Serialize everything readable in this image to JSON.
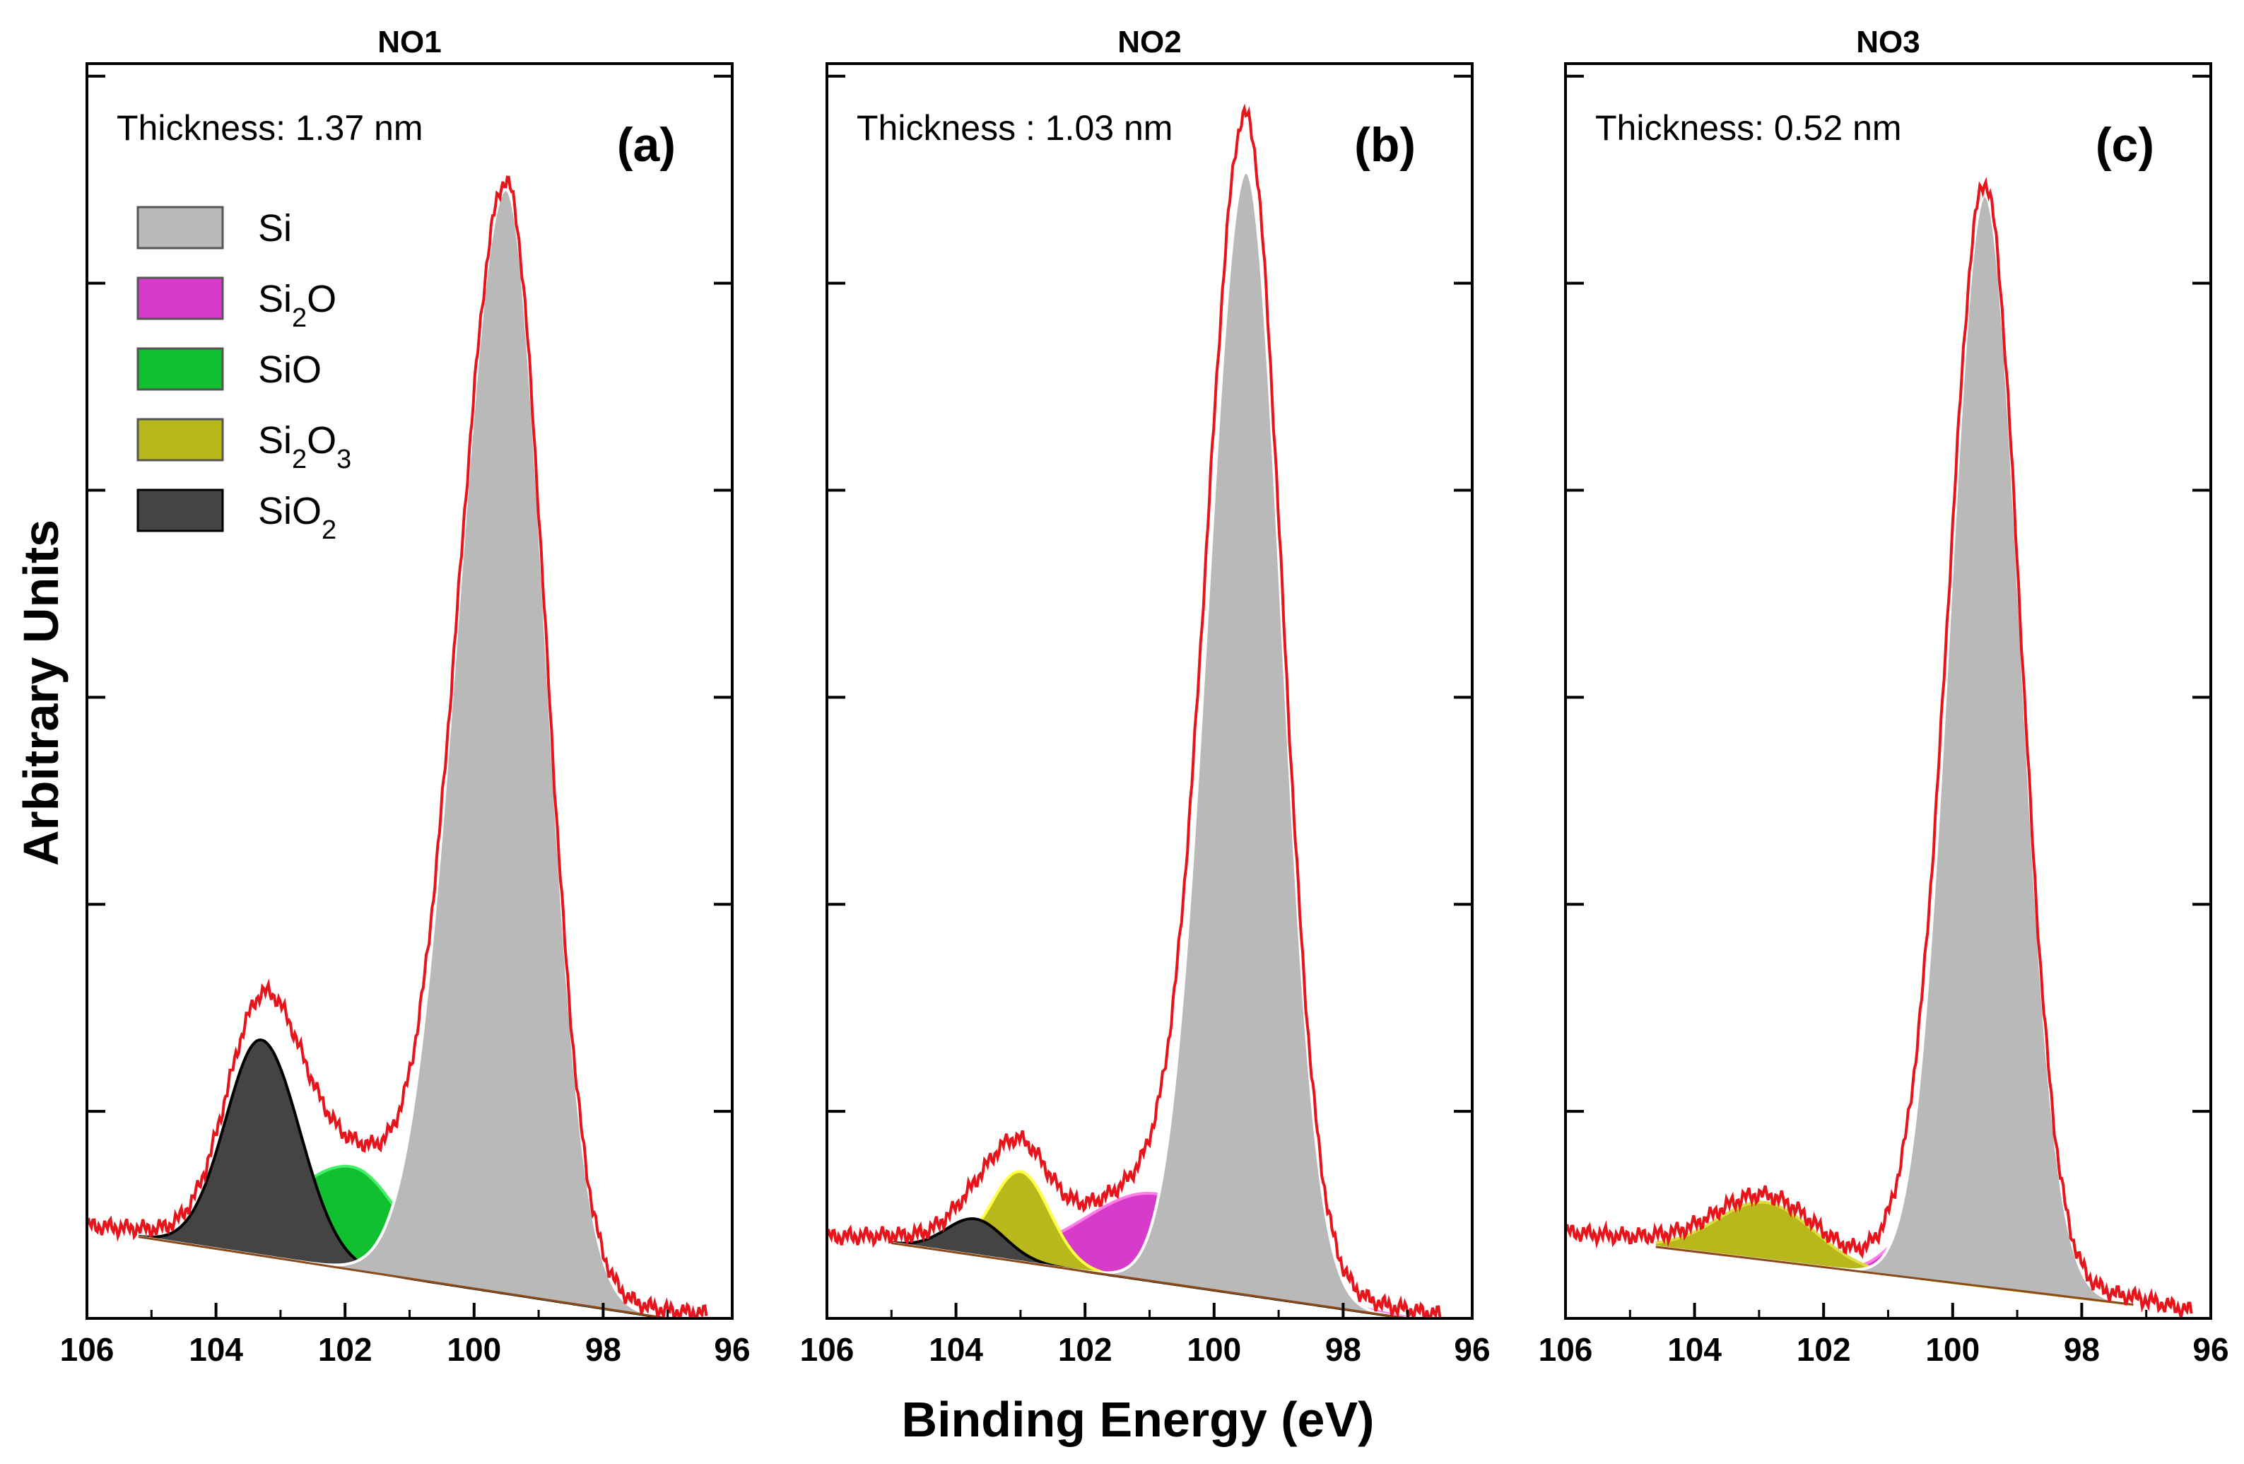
{
  "chart_data": {
    "type": "area",
    "xlabel": "Binding Energy (eV)",
    "ylabel": "Arbitrary Units",
    "xlim": [
      106,
      96
    ],
    "ylim": [
      0,
      100
    ],
    "x_ticks": [
      106,
      104,
      102,
      100,
      98,
      96
    ],
    "y_tick_count": 6,
    "legend": {
      "position": "top-left",
      "entries": [
        {
          "key": "Si",
          "base": "Si",
          "sub1": "",
          "mid": "",
          "sub2": "",
          "color": "#b9b9b9",
          "stroke": "#555555"
        },
        {
          "key": "Si2O",
          "base": "Si",
          "sub1": "2",
          "mid": "O",
          "sub2": "",
          "color": "#d63cc9",
          "stroke": "#555555"
        },
        {
          "key": "SiO",
          "base": "SiO",
          "sub1": "",
          "mid": "",
          "sub2": "",
          "color": "#10c030",
          "stroke": "#555555"
        },
        {
          "key": "Si2O3",
          "base": "Si",
          "sub1": "2",
          "mid": "O",
          "sub2": "3",
          "color": "#b8b81c",
          "stroke": "#555555"
        },
        {
          "key": "SiO2",
          "base": "SiO",
          "sub1": "2",
          "mid": "",
          "sub2": "",
          "color": "#444444",
          "stroke": "#000000"
        }
      ]
    },
    "panels": [
      {
        "title": "NO1",
        "letter": "(a)",
        "thickness": "Thickness: 1.37 nm",
        "x_range": [
          105.2,
          97.0
        ],
        "background": {
          "left": 6.5,
          "right": 0.0
        },
        "envelope_extend": {
          "left_x": 106,
          "left_y": 6.8,
          "right_x": 96.4,
          "right_y": -0.2
        },
        "components": [
          {
            "key": "Si",
            "center": 99.5,
            "height": 88.0,
            "width_left": 0.75,
            "width_right": 0.6,
            "edge": "#ffffff"
          },
          {
            "key": "SiO",
            "center": 101.9,
            "height": 8.2,
            "width_left": 1.0,
            "width_right": 0.75,
            "edge": "#44ee66"
          },
          {
            "key": "SiO2",
            "center": 103.3,
            "height": 17.2,
            "width_left": 0.55,
            "width_right": 0.6,
            "edge": "#000000"
          }
        ]
      },
      {
        "title": "NO2",
        "letter": "(b)",
        "thickness": "Thickness : 1.03  nm",
        "x_range": [
          105.0,
          97.0
        ],
        "background": {
          "left": 6.0,
          "right": 0.0
        },
        "envelope_extend": {
          "left_x": 106,
          "left_y": 5.9,
          "right_x": 96.5,
          "right_y": -0.3
        },
        "components": [
          {
            "key": "Si",
            "center": 99.5,
            "height": 89.5,
            "width_left": 0.6,
            "width_right": 0.55,
            "edge": "#ffffff"
          },
          {
            "key": "Si2O",
            "center": 100.9,
            "height": 7.0,
            "width_left": 1.1,
            "width_right": 1.3,
            "edge": "#ff7fe8"
          },
          {
            "key": "Si2O3",
            "center": 103.0,
            "height": 7.2,
            "width_left": 0.45,
            "width_right": 0.45,
            "edge": "#ffff44"
          },
          {
            "key": "SiO2",
            "center": 103.7,
            "height": 2.9,
            "width_left": 0.45,
            "width_right": 0.45,
            "edge": "#000000"
          }
        ]
      },
      {
        "title": "NO3",
        "letter": "(c)",
        "thickness": "Thickness: 0.52 nm",
        "x_range": [
          104.6,
          97.2
        ],
        "background": {
          "left": 5.7,
          "right": 1.1
        },
        "envelope_extend": {
          "left_x": 106,
          "left_y": 6.3,
          "right_x": 96.3,
          "right_y": 0.0
        },
        "components": [
          {
            "key": "Si",
            "center": 99.5,
            "height": 87.0,
            "width_left": 0.55,
            "width_right": 0.55,
            "edge": "#ffffff"
          },
          {
            "key": "Si2O",
            "center": 100.5,
            "height": 4.0,
            "width_left": 0.45,
            "width_right": 0.45,
            "edge": "#ff7fe8"
          },
          {
            "key": "Si2O3",
            "center": 102.9,
            "height": 4.6,
            "width_left": 0.75,
            "width_right": 0.75,
            "edge": "#dddd44"
          }
        ]
      }
    ]
  }
}
